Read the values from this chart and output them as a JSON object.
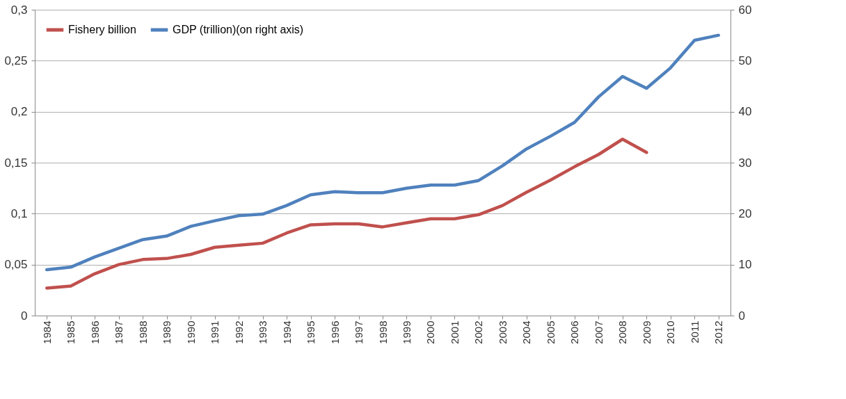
{
  "chart_data": {
    "type": "line",
    "categories": [
      "1984",
      "1985",
      "1986",
      "1987",
      "1988",
      "1989",
      "1990",
      "1991",
      "1992",
      "1993",
      "1994",
      "1995",
      "1996",
      "1997",
      "1998",
      "1999",
      "2000",
      "2001",
      "2002",
      "2003",
      "2004",
      "2005",
      "2006",
      "2007",
      "2008",
      "2009",
      "2010",
      "2011",
      "2012"
    ],
    "series": [
      {
        "name": "Fishery billion",
        "color": "#c0504d",
        "values": [
          0.027,
          0.029,
          0.041,
          0.05,
          0.055,
          0.056,
          0.06,
          0.067,
          0.069,
          0.071,
          0.081,
          0.089,
          0.09,
          0.09,
          0.087,
          0.091,
          0.095,
          0.095,
          0.099,
          0.108,
          0.121,
          0.133,
          0.146,
          0.158,
          0.173,
          0.16,
          null,
          null,
          null
        ]
      },
      {
        "name": "GDP (trillion)(on right axis)",
        "color": "#4f81bd",
        "axis": "y2",
        "values": [
          9.0,
          9.5,
          11.5,
          13.2,
          14.9,
          15.6,
          17.5,
          18.6,
          19.6,
          19.9,
          21.6,
          23.7,
          24.3,
          24.1,
          24.1,
          25.0,
          25.6,
          25.6,
          26.5,
          29.4,
          32.7,
          35.2,
          37.9,
          42.9,
          46.9,
          44.6,
          48.6,
          54.0,
          55.0
        ]
      }
    ],
    "ylim": [
      0,
      0.3
    ],
    "yticks": [
      0,
      {
        "value": 0.05,
        "label": "0,05"
      },
      {
        "value": 0.1,
        "label": "0,1"
      },
      {
        "value": 0.15,
        "label": "0,15"
      },
      {
        "value": 0.2,
        "label": "0,2"
      },
      {
        "value": 0.25,
        "label": "0,25"
      },
      {
        "value": 0.3,
        "label": "0,3"
      }
    ],
    "y2lim": [
      0,
      60
    ],
    "y2ticks": [
      0,
      10,
      20,
      30,
      40,
      50,
      60
    ],
    "grid": "y",
    "legend": "top",
    "line_style": "solid"
  }
}
